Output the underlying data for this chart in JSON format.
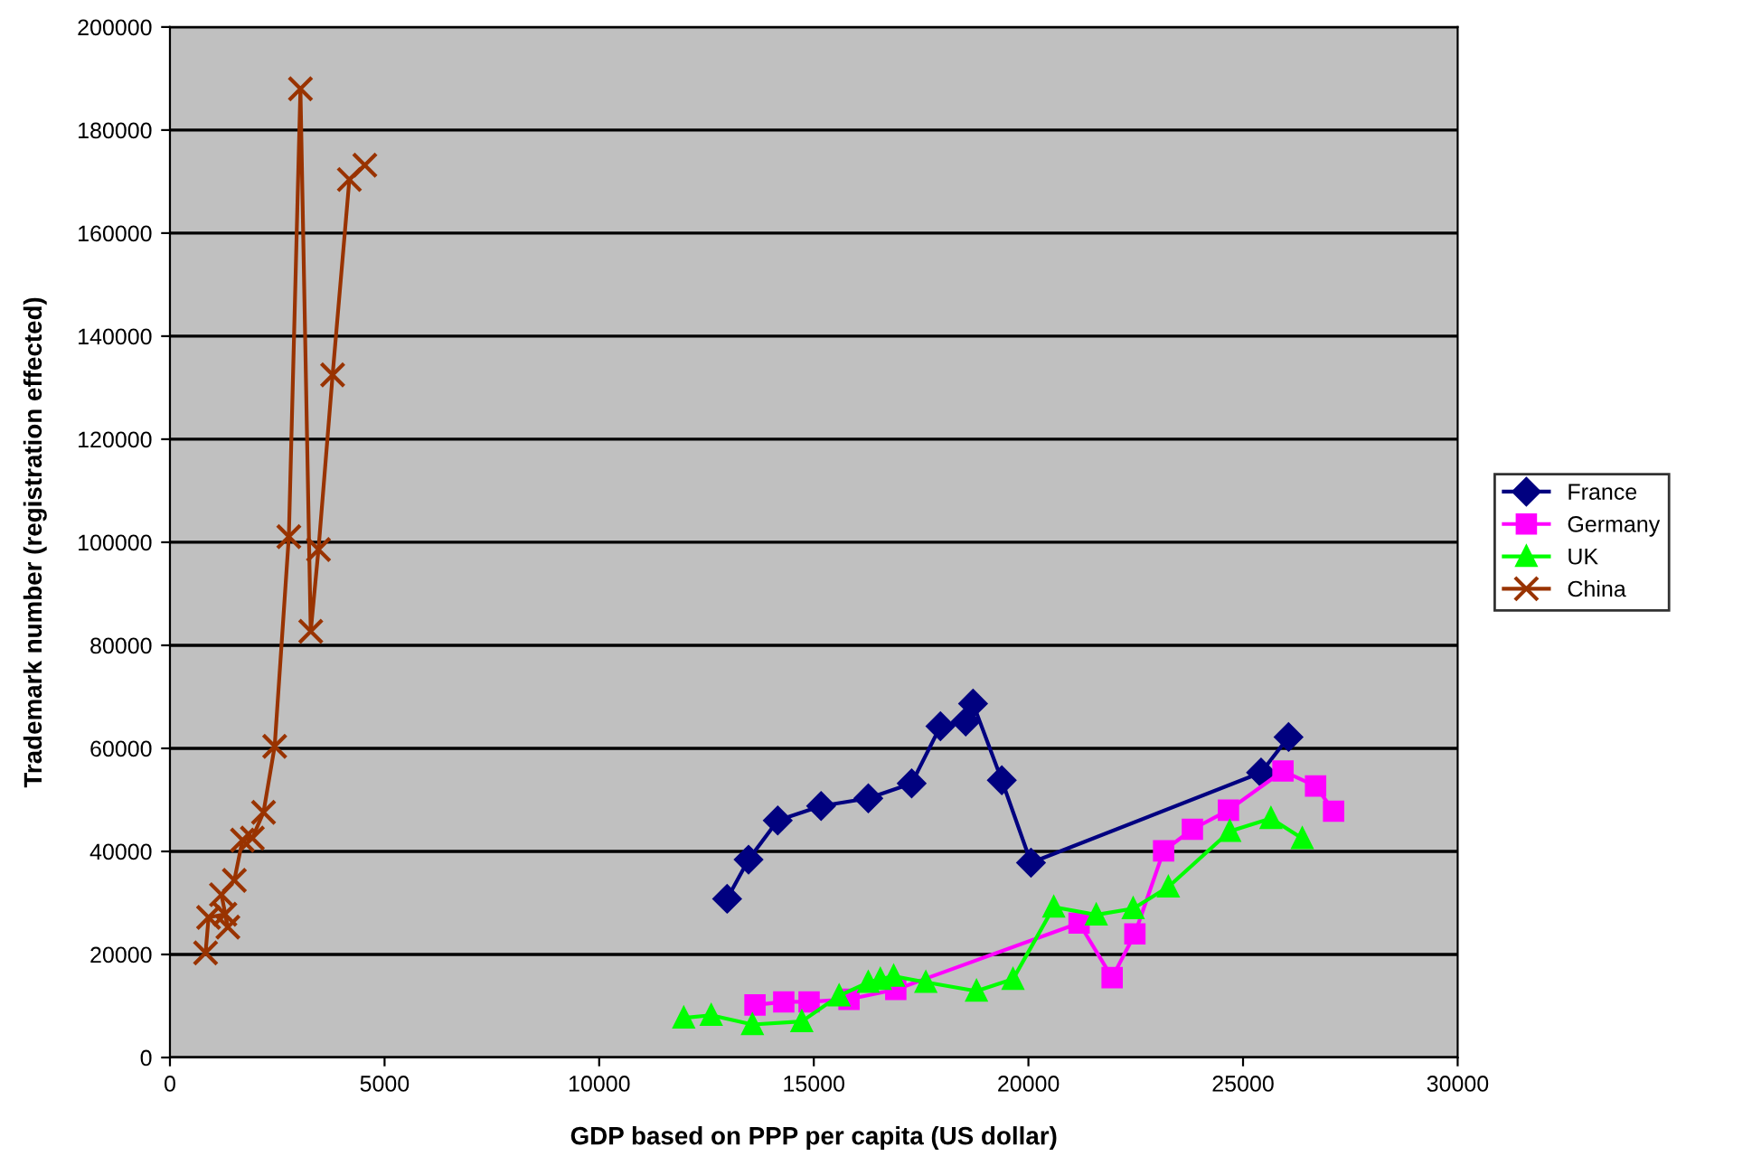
{
  "chart_data": {
    "type": "line",
    "xlabel": "GDP based on PPP per capita (US dollar)",
    "ylabel": "Trademark number (registration effected)",
    "xlim": [
      0,
      30000
    ],
    "xticks": [
      0,
      5000,
      10000,
      15000,
      20000,
      25000,
      30000
    ],
    "ylim": [
      0,
      200000
    ],
    "yticks": [
      0,
      20000,
      40000,
      60000,
      80000,
      100000,
      120000,
      140000,
      160000,
      180000,
      200000
    ],
    "grid": "y",
    "legend": "right",
    "series": [
      {
        "name": "France",
        "color": "#000080",
        "marker": "diamond",
        "x": [
          12980,
          13480,
          14160,
          15170,
          16270,
          17280,
          17950,
          18540,
          18710,
          19380,
          20060,
          25420,
          26060
        ],
        "values": [
          30800,
          38400,
          46000,
          48800,
          50300,
          53200,
          64300,
          65200,
          68700,
          53800,
          37800,
          55300,
          62200
        ]
      },
      {
        "name": "Germany",
        "color": "#ff00ff",
        "marker": "square",
        "x": [
          13630,
          14300,
          14890,
          15820,
          16910,
          21180,
          21950,
          22480,
          23150,
          23820,
          24660,
          25930,
          26690,
          27110
        ],
        "values": [
          10200,
          10800,
          10800,
          11300,
          13200,
          26100,
          15500,
          24000,
          40100,
          44300,
          48000,
          55600,
          52700,
          47800
        ]
      },
      {
        "name": "UK",
        "color": "#00ff00",
        "marker": "triangle",
        "x": [
          11970,
          12610,
          13570,
          14720,
          15590,
          16270,
          16550,
          16860,
          17610,
          18790,
          19640,
          20590,
          21580,
          22440,
          23260,
          24690,
          25650,
          26380
        ],
        "values": [
          7700,
          8200,
          6400,
          7000,
          12000,
          14600,
          15200,
          15800,
          14600,
          12900,
          15200,
          29200,
          27700,
          28900,
          33100,
          43900,
          46400,
          42500
        ]
      },
      {
        "name": "China",
        "color": "#993300",
        "marker": "cross",
        "x": [
          830,
          900,
          1280,
          1350,
          1200,
          1500,
          1690,
          1920,
          2180,
          2440,
          2770,
          3040,
          3280,
          3460,
          3790,
          4180,
          4540
        ],
        "values": [
          20300,
          27200,
          27800,
          25300,
          31600,
          34400,
          42200,
          42600,
          47600,
          60400,
          101100,
          188000,
          82700,
          98600,
          132500,
          170400,
          173200
        ]
      }
    ]
  }
}
